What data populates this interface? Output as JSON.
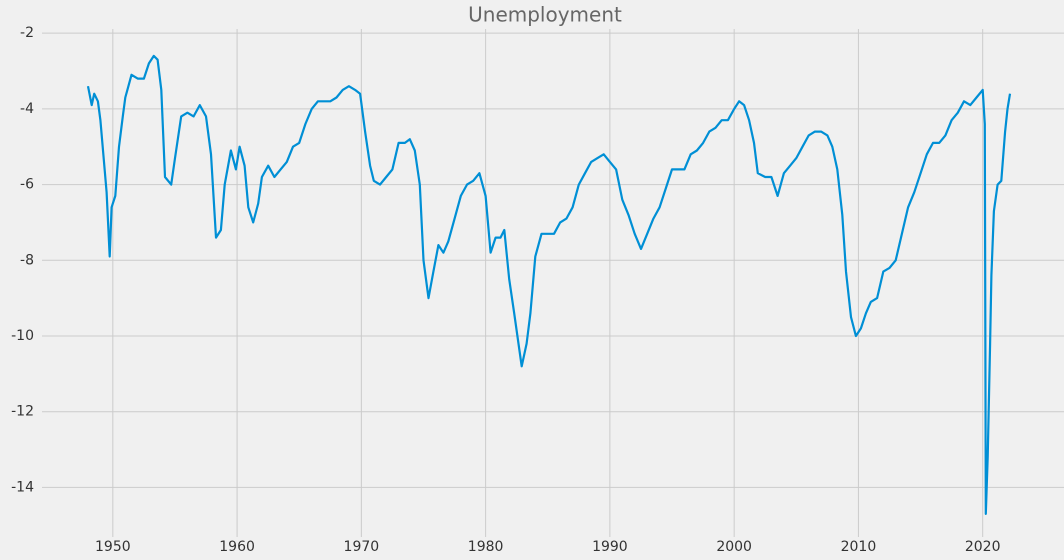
{
  "chart_data": {
    "type": "line",
    "title": "Unemployment",
    "x": [
      1948.0,
      1948.3,
      1948.5,
      1948.8,
      1949.0,
      1949.5,
      1949.75,
      1949.9,
      1950.2,
      1950.5,
      1950.8,
      1951.0,
      1951.5,
      1952.0,
      1952.5,
      1952.9,
      1953.3,
      1953.6,
      1953.9,
      1954.2,
      1954.7,
      1955.0,
      1955.5,
      1956.0,
      1956.5,
      1957.0,
      1957.5,
      1957.9,
      1958.3,
      1958.7,
      1959.0,
      1959.5,
      1959.9,
      1960.2,
      1960.6,
      1960.9,
      1961.3,
      1961.7,
      1962.0,
      1962.5,
      1963.0,
      1963.5,
      1964.0,
      1964.5,
      1965.0,
      1965.5,
      1966.0,
      1966.5,
      1967.0,
      1967.5,
      1968.0,
      1968.5,
      1969.0,
      1969.5,
      1969.9,
      1970.3,
      1970.7,
      1971.0,
      1971.5,
      1972.0,
      1972.5,
      1973.0,
      1973.5,
      1973.9,
      1974.3,
      1974.7,
      1975.0,
      1975.4,
      1975.8,
      1976.2,
      1976.6,
      1977.0,
      1977.5,
      1978.0,
      1978.5,
      1979.0,
      1979.5,
      1980.0,
      1980.4,
      1980.8,
      1981.2,
      1981.5,
      1981.9,
      1982.3,
      1982.9,
      1983.3,
      1983.6,
      1984.0,
      1984.5,
      1985.0,
      1985.5,
      1986.0,
      1986.5,
      1987.0,
      1987.5,
      1988.0,
      1988.5,
      1989.0,
      1989.5,
      1990.0,
      1990.5,
      1991.0,
      1991.5,
      1992.0,
      1992.5,
      1993.0,
      1993.5,
      1994.0,
      1994.5,
      1995.0,
      1995.5,
      1996.0,
      1996.5,
      1997.0,
      1997.5,
      1998.0,
      1998.5,
      1999.0,
      1999.5,
      2000.0,
      2000.4,
      2000.8,
      2001.2,
      2001.6,
      2001.9,
      2002.5,
      2003.0,
      2003.5,
      2004.0,
      2004.5,
      2005.0,
      2005.5,
      2006.0,
      2006.5,
      2007.0,
      2007.5,
      2007.9,
      2008.3,
      2008.7,
      2009.0,
      2009.4,
      2009.8,
      2010.2,
      2010.6,
      2011.0,
      2011.5,
      2012.0,
      2012.5,
      2013.0,
      2013.5,
      2014.0,
      2014.5,
      2015.0,
      2015.5,
      2016.0,
      2016.5,
      2017.0,
      2017.5,
      2018.0,
      2018.5,
      2019.0,
      2019.5,
      2020.0,
      2020.17,
      2020.25,
      2020.4,
      2020.6,
      2020.7,
      2020.9,
      2021.2,
      2021.5,
      2021.8,
      2022.0,
      2022.2
    ],
    "series": [
      {
        "name": "Unemployment",
        "color": "#008fd5",
        "values": [
          -3.4,
          -3.9,
          -3.6,
          -3.8,
          -4.3,
          -6.2,
          -7.9,
          -6.6,
          -6.3,
          -5.0,
          -4.2,
          -3.7,
          -3.1,
          -3.2,
          -3.2,
          -2.8,
          -2.6,
          -2.7,
          -3.5,
          -5.8,
          -6.0,
          -5.3,
          -4.2,
          -4.1,
          -4.2,
          -3.9,
          -4.2,
          -5.2,
          -7.4,
          -7.2,
          -6.0,
          -5.1,
          -5.6,
          -5.0,
          -5.5,
          -6.6,
          -7.0,
          -6.5,
          -5.8,
          -5.5,
          -5.8,
          -5.6,
          -5.4,
          -5.0,
          -4.9,
          -4.4,
          -4.0,
          -3.8,
          -3.8,
          -3.8,
          -3.7,
          -3.5,
          -3.4,
          -3.5,
          -3.6,
          -4.6,
          -5.5,
          -5.9,
          -6.0,
          -5.8,
          -5.6,
          -4.9,
          -4.9,
          -4.8,
          -5.1,
          -6.0,
          -8.0,
          -9.0,
          -8.3,
          -7.6,
          -7.8,
          -7.5,
          -6.9,
          -6.3,
          -6.0,
          -5.9,
          -5.7,
          -6.3,
          -7.8,
          -7.4,
          -7.4,
          -7.2,
          -8.5,
          -9.4,
          -10.8,
          -10.2,
          -9.4,
          -7.9,
          -7.3,
          -7.3,
          -7.3,
          -7.0,
          -6.9,
          -6.6,
          -6.0,
          -5.7,
          -5.4,
          -5.3,
          -5.2,
          -5.4,
          -5.6,
          -6.4,
          -6.8,
          -7.3,
          -7.7,
          -7.3,
          -6.9,
          -6.6,
          -6.1,
          -5.6,
          -5.6,
          -5.6,
          -5.2,
          -5.1,
          -4.9,
          -4.6,
          -4.5,
          -4.3,
          -4.3,
          -4.0,
          -3.8,
          -3.9,
          -4.3,
          -4.9,
          -5.7,
          -5.8,
          -5.8,
          -6.3,
          -5.7,
          -5.5,
          -5.3,
          -5.0,
          -4.7,
          -4.6,
          -4.6,
          -4.7,
          -5.0,
          -5.6,
          -6.8,
          -8.3,
          -9.5,
          -10.0,
          -9.8,
          -9.4,
          -9.1,
          -9.0,
          -8.3,
          -8.2,
          -8.0,
          -7.3,
          -6.6,
          -6.2,
          -5.7,
          -5.2,
          -4.9,
          -4.9,
          -4.7,
          -4.3,
          -4.1,
          -3.8,
          -3.9,
          -3.7,
          -3.5,
          -4.4,
          -14.7,
          -13.2,
          -10.2,
          -8.4,
          -6.7,
          -6.0,
          -5.9,
          -4.6,
          -4.0,
          -3.6
        ]
      }
    ],
    "xlim": [
      1944.3,
      2025.9
    ],
    "xticks": [
      1950,
      1960,
      1970,
      1980,
      1990,
      2000,
      2010,
      2020
    ],
    "ylim": [
      -15.31,
      -1.89
    ],
    "yticks": [
      -2,
      -4,
      -6,
      -8,
      -10,
      -12,
      -14
    ],
    "grid": true
  }
}
